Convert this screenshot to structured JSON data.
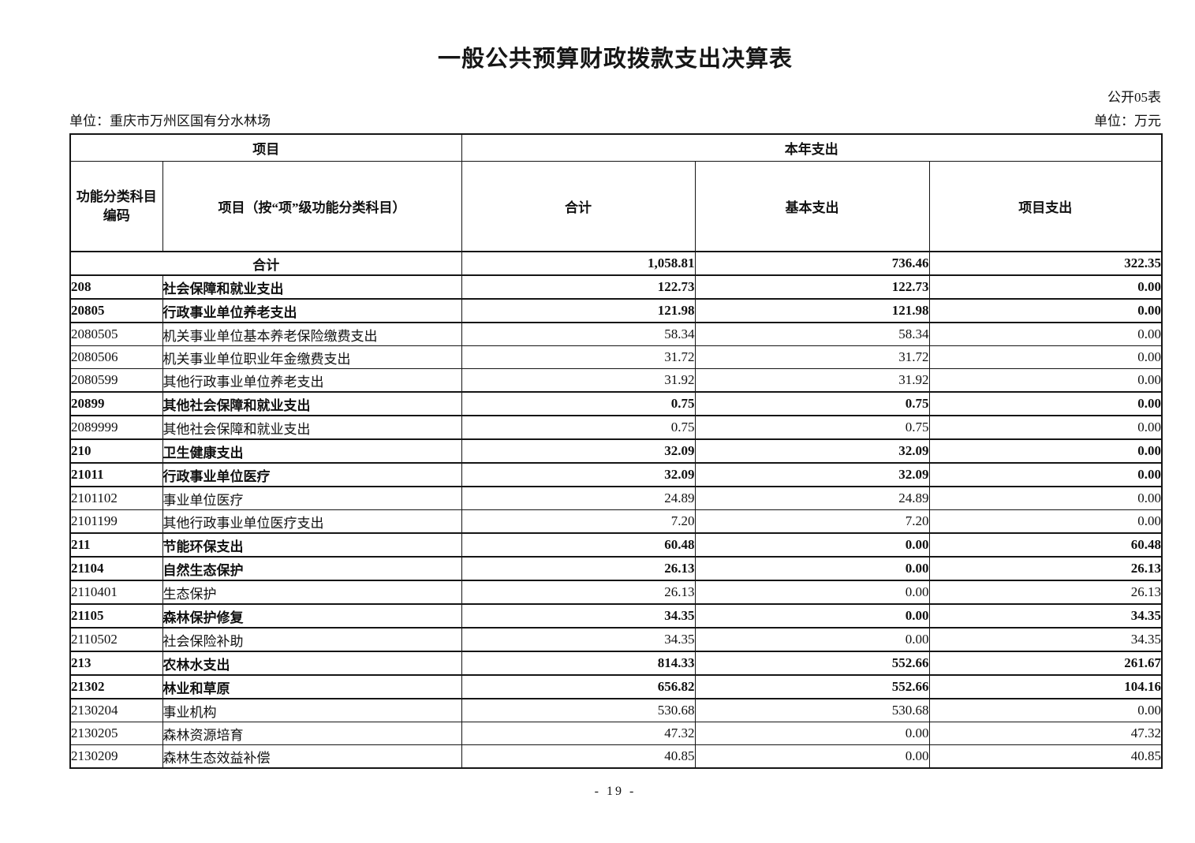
{
  "page": {
    "title": "一般公共预算财政拨款支出决算表",
    "table_label": "公开05表",
    "unit_org": "单位：重庆市万州区国有分水林场",
    "unit_money": "单位：万元",
    "page_number": "- 19 -"
  },
  "table": {
    "header": {
      "group_item": "项目",
      "group_year": "本年支出",
      "col_code_line1": "功能分类科目",
      "col_code_line2": "编码",
      "col_item": "项目（按“项”级功能分类科目）",
      "col_total": "合计",
      "col_basic": "基本支出",
      "col_project": "项目支出"
    },
    "rows": [
      {
        "code": "",
        "item": "合计",
        "total": "1,058.81",
        "basic": "736.46",
        "project": "322.35",
        "bold": true,
        "merged": true
      },
      {
        "code": "208",
        "item": "社会保障和就业支出",
        "total": "122.73",
        "basic": "122.73",
        "project": "0.00",
        "bold": true,
        "merged": false
      },
      {
        "code": "20805",
        "item": "行政事业单位养老支出",
        "total": "121.98",
        "basic": "121.98",
        "project": "0.00",
        "bold": true,
        "merged": false
      },
      {
        "code": "2080505",
        "item": "机关事业单位基本养老保险缴费支出",
        "total": "58.34",
        "basic": "58.34",
        "project": "0.00",
        "bold": false,
        "merged": false
      },
      {
        "code": "2080506",
        "item": "机关事业单位职业年金缴费支出",
        "total": "31.72",
        "basic": "31.72",
        "project": "0.00",
        "bold": false,
        "merged": false
      },
      {
        "code": "2080599",
        "item": "其他行政事业单位养老支出",
        "total": "31.92",
        "basic": "31.92",
        "project": "0.00",
        "bold": false,
        "merged": false
      },
      {
        "code": "20899",
        "item": "其他社会保障和就业支出",
        "total": "0.75",
        "basic": "0.75",
        "project": "0.00",
        "bold": true,
        "merged": false
      },
      {
        "code": "2089999",
        "item": "其他社会保障和就业支出",
        "total": "0.75",
        "basic": "0.75",
        "project": "0.00",
        "bold": false,
        "merged": false
      },
      {
        "code": "210",
        "item": "卫生健康支出",
        "total": "32.09",
        "basic": "32.09",
        "project": "0.00",
        "bold": true,
        "merged": false
      },
      {
        "code": "21011",
        "item": "行政事业单位医疗",
        "total": "32.09",
        "basic": "32.09",
        "project": "0.00",
        "bold": true,
        "merged": false
      },
      {
        "code": "2101102",
        "item": "事业单位医疗",
        "total": "24.89",
        "basic": "24.89",
        "project": "0.00",
        "bold": false,
        "merged": false
      },
      {
        "code": "2101199",
        "item": "其他行政事业单位医疗支出",
        "total": "7.20",
        "basic": "7.20",
        "project": "0.00",
        "bold": false,
        "merged": false
      },
      {
        "code": "211",
        "item": "节能环保支出",
        "total": "60.48",
        "basic": "0.00",
        "project": "60.48",
        "bold": true,
        "merged": false
      },
      {
        "code": "21104",
        "item": "自然生态保护",
        "total": "26.13",
        "basic": "0.00",
        "project": "26.13",
        "bold": true,
        "merged": false
      },
      {
        "code": "2110401",
        "item": "生态保护",
        "total": "26.13",
        "basic": "0.00",
        "project": "26.13",
        "bold": false,
        "merged": false
      },
      {
        "code": "21105",
        "item": "森林保护修复",
        "total": "34.35",
        "basic": "0.00",
        "project": "34.35",
        "bold": true,
        "merged": false
      },
      {
        "code": "2110502",
        "item": "社会保险补助",
        "total": "34.35",
        "basic": "0.00",
        "project": "34.35",
        "bold": false,
        "merged": false
      },
      {
        "code": "213",
        "item": "农林水支出",
        "total": "814.33",
        "basic": "552.66",
        "project": "261.67",
        "bold": true,
        "merged": false
      },
      {
        "code": "21302",
        "item": "林业和草原",
        "total": "656.82",
        "basic": "552.66",
        "project": "104.16",
        "bold": true,
        "merged": false
      },
      {
        "code": "2130204",
        "item": "事业机构",
        "total": "530.68",
        "basic": "530.68",
        "project": "0.00",
        "bold": false,
        "merged": false
      },
      {
        "code": "2130205",
        "item": "森林资源培育",
        "total": "47.32",
        "basic": "0.00",
        "project": "47.32",
        "bold": false,
        "merged": false
      },
      {
        "code": "2130209",
        "item": "森林生态效益补偿",
        "total": "40.85",
        "basic": "0.00",
        "project": "40.85",
        "bold": false,
        "merged": false
      }
    ]
  }
}
